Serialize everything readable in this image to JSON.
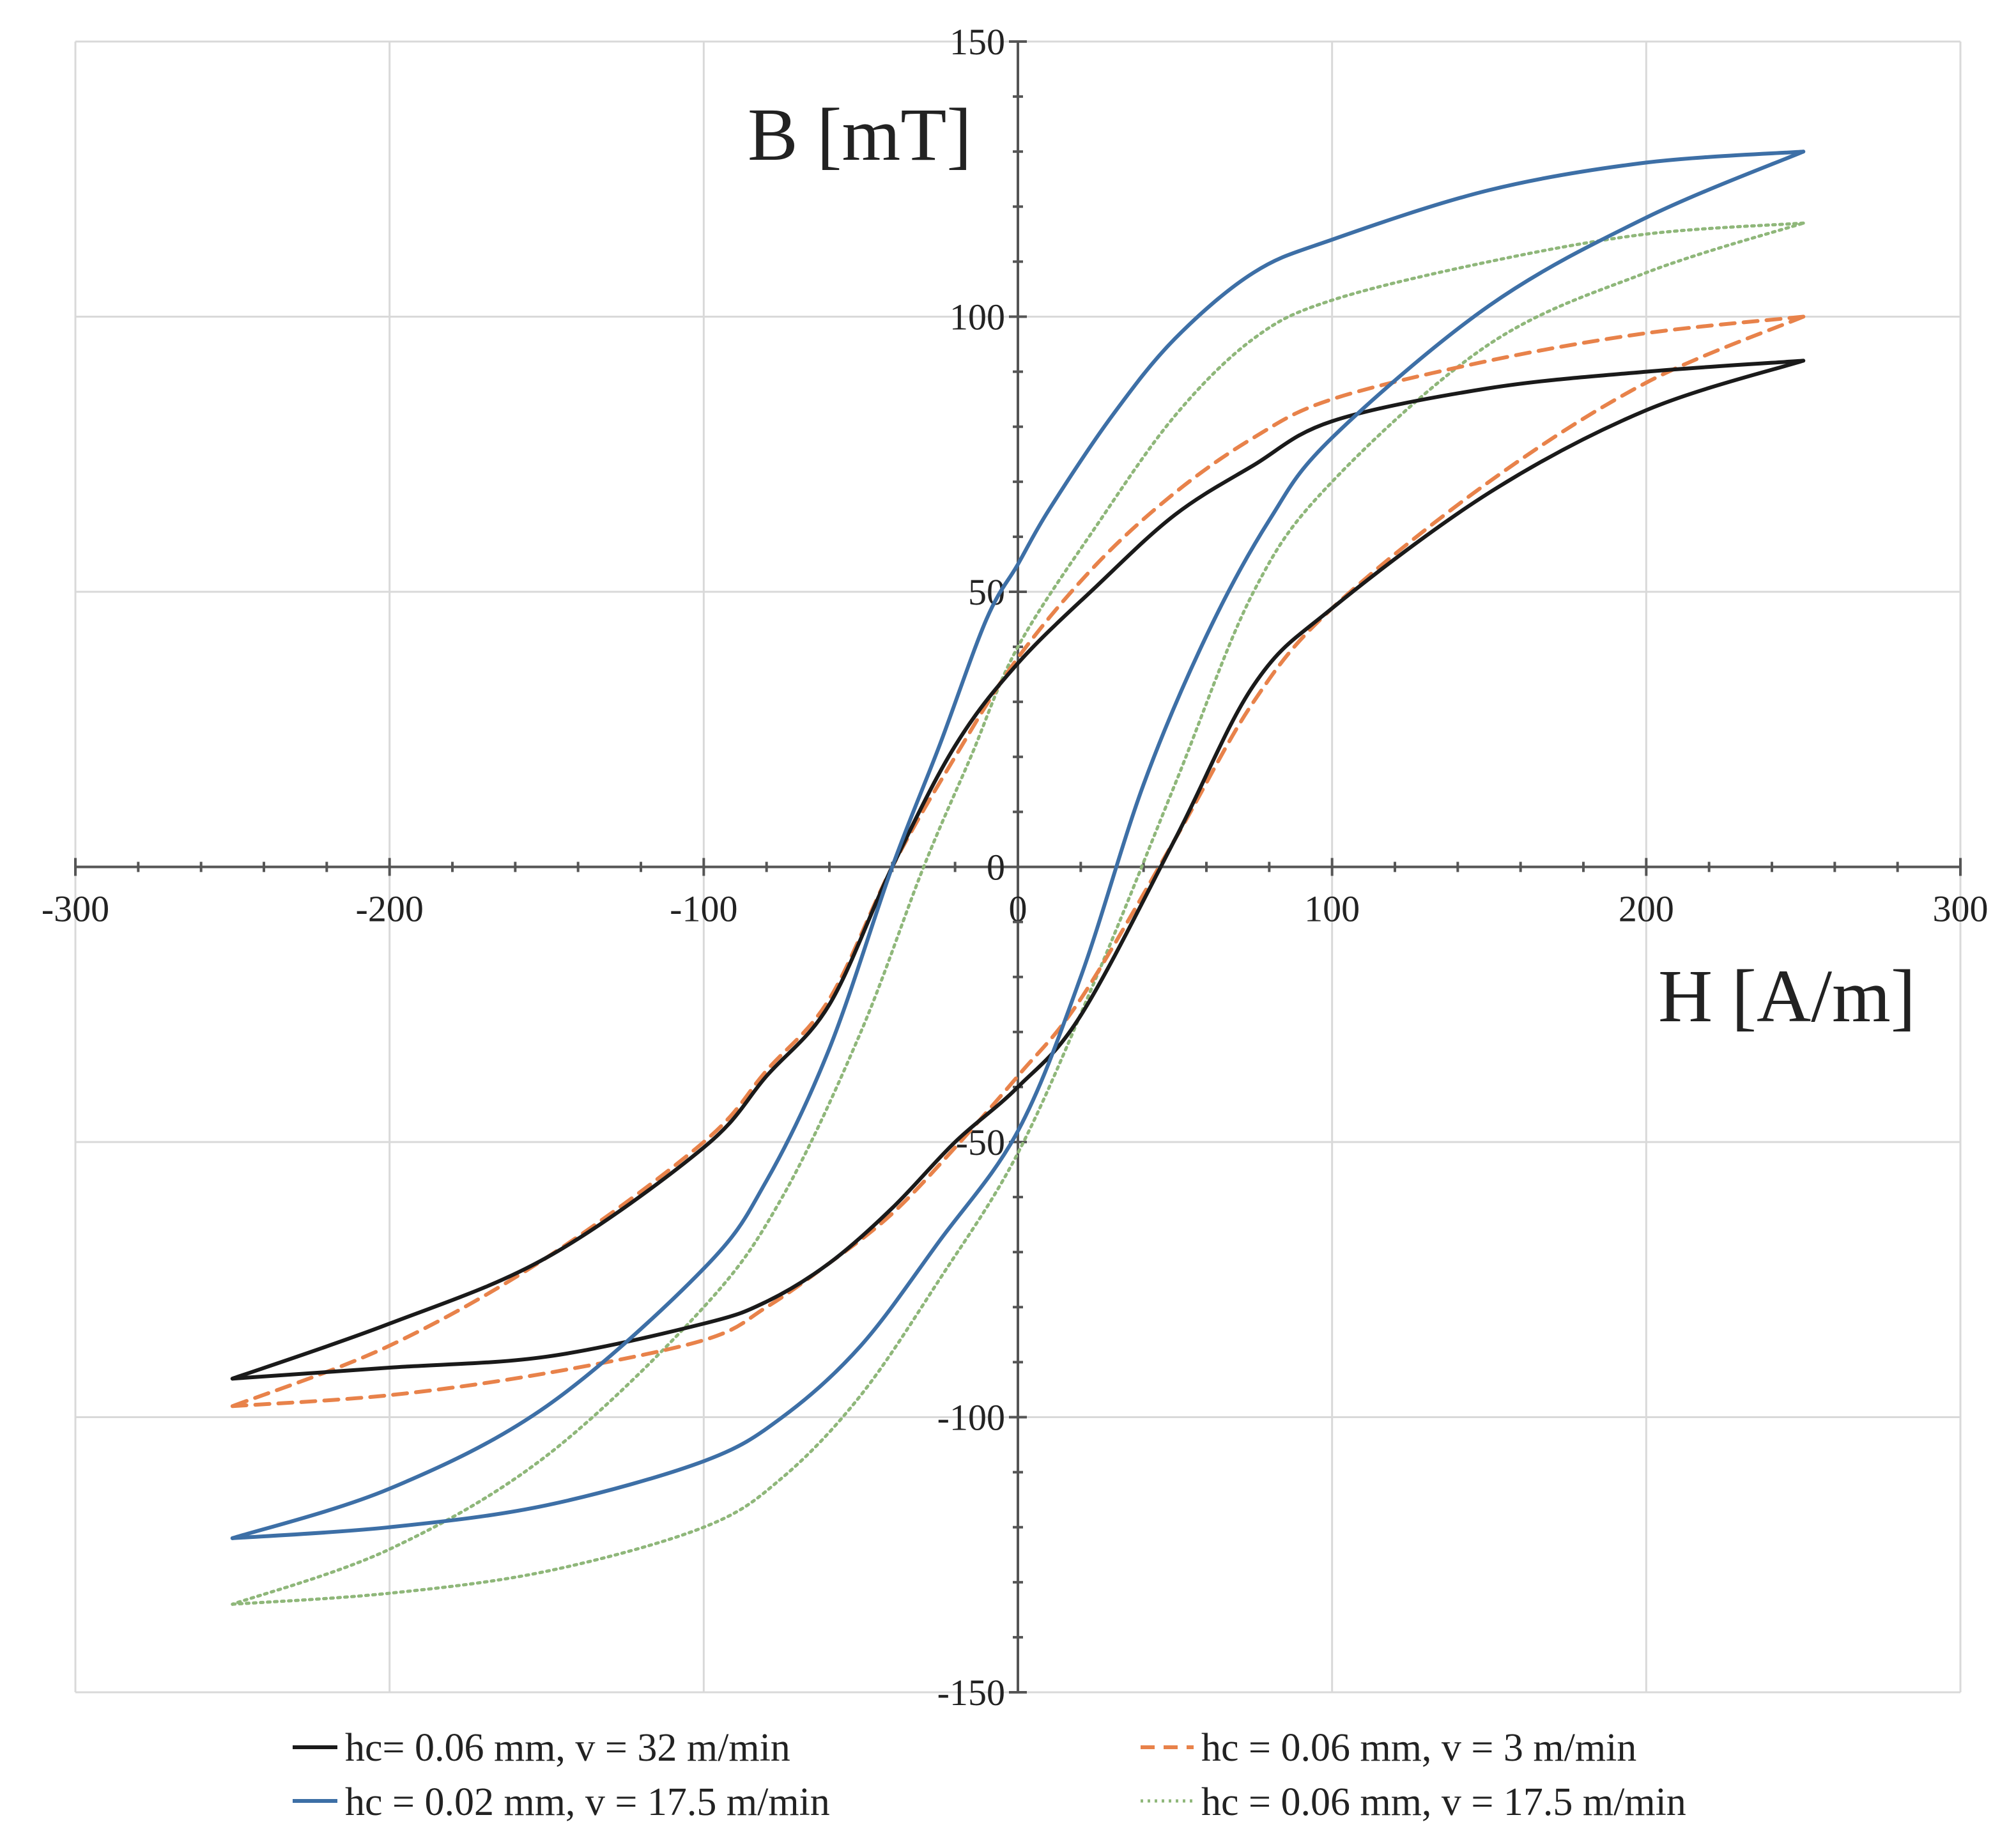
{
  "chart_data": {
    "type": "line",
    "title": "",
    "xlabel": "H [A/m]",
    "ylabel": "B [mT]",
    "xlim": [
      -300,
      300
    ],
    "ylim": [
      -150,
      150
    ],
    "x_ticks": [
      -300,
      -200,
      -100,
      0,
      100,
      200,
      300
    ],
    "y_ticks": [
      -150,
      -100,
      -50,
      0,
      50,
      100,
      150
    ],
    "x_tick_labels": [
      "-300",
      "-200",
      "-100",
      "0",
      "100",
      "200",
      "300"
    ],
    "y_tick_labels": [
      "-150",
      "-100",
      "-50",
      "0",
      "50",
      "100",
      "150"
    ],
    "grid": true,
    "legend_position": "bottom",
    "series": [
      {
        "name": "hc= 0.06 mm, v = 32 m/min",
        "color": "#1a1a1a",
        "style": "solid",
        "upper": {
          "x": [
            -250,
            -200,
            -150,
            -100,
            -80,
            -60,
            -40,
            -20,
            0,
            20,
            50,
            75,
            100,
            150,
            200,
            250
          ],
          "y": [
            -93,
            -91,
            -89,
            -83,
            -79,
            -72,
            -62,
            -50,
            -40,
            -27,
            5,
            33,
            47,
            68,
            83,
            92
          ]
        },
        "lower": {
          "x": [
            250,
            200,
            150,
            100,
            75,
            50,
            25,
            0,
            -20,
            -40,
            -60,
            -80,
            -100,
            -150,
            -200,
            -250
          ],
          "y": [
            92,
            90,
            87,
            81,
            73,
            64,
            51,
            37,
            22,
            0,
            -25,
            -38,
            -51,
            -71,
            -83,
            -93
          ]
        }
      },
      {
        "name": "hc = 0.06 mm, v = 3 m/min",
        "color": "#e8824a",
        "style": "dashed",
        "upper": {
          "x": [
            -250,
            -200,
            -150,
            -100,
            -80,
            -60,
            -40,
            -20,
            0,
            20,
            50,
            75,
            100,
            150,
            200,
            250
          ],
          "y": [
            -98,
            -96,
            -92,
            -86,
            -80,
            -72,
            -63,
            -51,
            -38,
            -24,
            5,
            30,
            47,
            70,
            88,
            100
          ]
        },
        "lower": {
          "x": [
            250,
            200,
            150,
            100,
            75,
            50,
            25,
            0,
            -20,
            -40,
            -60,
            -80,
            -100,
            -150,
            -200,
            -250
          ],
          "y": [
            100,
            97,
            92,
            85,
            78,
            68,
            55,
            38,
            20,
            0,
            -24,
            -37,
            -50,
            -71,
            -87,
            -98
          ]
        }
      },
      {
        "name": "hc = 0.02 mm, v = 17.5 m/min",
        "color": "#3d6fa6",
        "style": "solid",
        "upper": {
          "x": [
            -250,
            -200,
            -150,
            -100,
            -75,
            -50,
            -25,
            0,
            20,
            40,
            60,
            80,
            100,
            150,
            200,
            250
          ],
          "y": [
            -122,
            -120,
            -116,
            -108,
            -100,
            -87,
            -68,
            -48,
            -20,
            15,
            42,
            63,
            78,
            102,
            118,
            130
          ]
        },
        "lower": {
          "x": [
            250,
            200,
            150,
            100,
            75,
            50,
            30,
            10,
            0,
            -10,
            -25,
            -40,
            -60,
            -80,
            -100,
            -150,
            -200,
            -250
          ],
          "y": [
            130,
            128,
            123,
            114,
            108,
            96,
            82,
            65,
            55,
            45,
            22,
            0,
            -33,
            -57,
            -73,
            -98,
            -113,
            -122
          ]
        }
      },
      {
        "name": "hc = 0.06 mm, v = 17.5 m/min",
        "color": "#8fb77a",
        "style": "dotted",
        "upper": {
          "x": [
            -250,
            -200,
            -150,
            -100,
            -75,
            -50,
            -25,
            0,
            25,
            50,
            75,
            100,
            150,
            200,
            250
          ],
          "y": [
            -134,
            -132,
            -128,
            -120,
            -111,
            -96,
            -75,
            -52,
            -20,
            15,
            50,
            70,
            95,
            108,
            117
          ]
        },
        "lower": {
          "x": [
            250,
            200,
            150,
            100,
            75,
            50,
            25,
            0,
            -15,
            -30,
            -50,
            -75,
            -100,
            -150,
            -200,
            -250
          ],
          "y": [
            117,
            115,
            110,
            103,
            96,
            82,
            62,
            40,
            20,
            0,
            -30,
            -60,
            -80,
            -107,
            -124,
            -134
          ]
        }
      }
    ]
  }
}
